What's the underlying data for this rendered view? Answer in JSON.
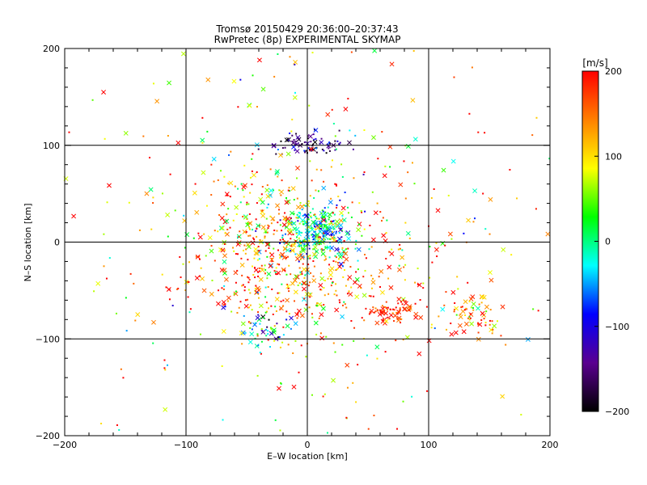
{
  "chart_data": {
    "type": "scatter",
    "title": "Tromsø 20150429 20:36:00–20:37:43",
    "subtitle": "RwPretec (8p) EXPERIMENTAL SKYMAP",
    "xlabel": "E–W location [km]",
    "ylabel": "N–S location [km]",
    "xlim": [
      -200,
      200
    ],
    "ylim": [
      -200,
      200
    ],
    "xticks": [
      "−200",
      "−100",
      "0",
      "100",
      "200"
    ],
    "yticks": [
      "−200",
      "−100",
      "0",
      "100",
      "200"
    ],
    "grid": [
      -100,
      0,
      100
    ],
    "grid_on": true,
    "markers": [
      "x",
      "dot"
    ],
    "colorbar": {
      "label": "[m/s]",
      "range": [
        -200,
        200
      ],
      "ticks": [
        "−200",
        "−100",
        "0",
        "100",
        "200"
      ],
      "colors": [
        "#000000",
        "#5a0090",
        "#0000ff",
        "#00ffff",
        "#00ff00",
        "#ffff00",
        "#ff8000",
        "#ff0000"
      ]
    },
    "clusters": [
      {
        "x": 10,
        "y": 12,
        "sx": 15,
        "sy": 15,
        "n": 260,
        "v": -20,
        "vs": 50
      },
      {
        "x": 0,
        "y": 100,
        "sx": 18,
        "sy": 5,
        "n": 80,
        "v": -140,
        "vs": 40
      },
      {
        "x": -35,
        "y": 15,
        "sx": 28,
        "sy": 30,
        "n": 240,
        "v": 120,
        "vs": 80
      },
      {
        "x": -10,
        "y": -40,
        "sx": 45,
        "sy": 28,
        "n": 300,
        "v": 150,
        "vs": 80
      },
      {
        "x": 70,
        "y": -72,
        "sx": 12,
        "sy": 6,
        "n": 70,
        "v": 180,
        "vs": 30
      },
      {
        "x": 135,
        "y": -75,
        "sx": 12,
        "sy": 12,
        "n": 70,
        "v": 150,
        "vs": 70
      },
      {
        "x": -35,
        "y": -90,
        "sx": 12,
        "sy": 10,
        "n": 50,
        "v": -30,
        "vs": 90
      },
      {
        "x": 0,
        "y": 0,
        "sx": 110,
        "sy": 110,
        "n": 450,
        "v": 120,
        "vs": 100
      }
    ]
  }
}
